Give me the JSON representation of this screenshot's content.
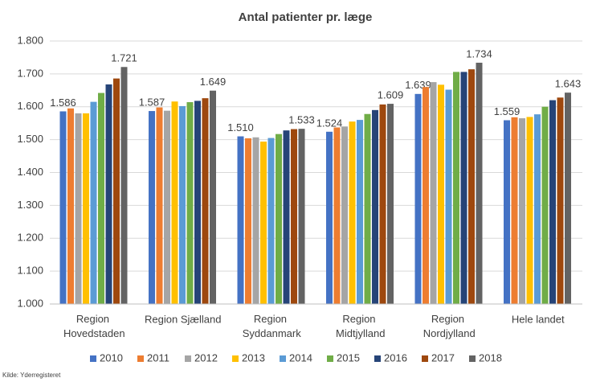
{
  "chart_data": {
    "type": "bar",
    "title": "Antal patienter pr. læge",
    "source": "Kilde: Yderregisteret",
    "categories": [
      "Region Hovedstaden",
      "Region Sjælland",
      "Region Syddanmark",
      "Region Midtjylland",
      "Region Nordjylland",
      "Hele landet"
    ],
    "series": [
      {
        "name": "2010",
        "color": "#4472c4",
        "values": [
          1586,
          1587,
          1510,
          1524,
          1639,
          1559
        ],
        "value_labels": [
          "1.586",
          "1.587",
          "1.510",
          "1.524",
          "1.639",
          "1.559"
        ]
      },
      {
        "name": "2011",
        "color": "#ed7d31",
        "values": [
          1595,
          1598,
          1504,
          1537,
          1660,
          1568
        ]
      },
      {
        "name": "2012",
        "color": "#a5a5a5",
        "values": [
          1580,
          1588,
          1507,
          1540,
          1675,
          1565
        ]
      },
      {
        "name": "2013",
        "color": "#ffc000",
        "values": [
          1580,
          1616,
          1494,
          1555,
          1667,
          1569
        ]
      },
      {
        "name": "2014",
        "color": "#5b9bd5",
        "values": [
          1615,
          1602,
          1505,
          1560,
          1652,
          1577
        ]
      },
      {
        "name": "2015",
        "color": "#70ad47",
        "values": [
          1642,
          1614,
          1517,
          1578,
          1706,
          1600
        ]
      },
      {
        "name": "2016",
        "color": "#264478",
        "values": [
          1668,
          1618,
          1528,
          1590,
          1706,
          1620
        ]
      },
      {
        "name": "2017",
        "color": "#9e480e",
        "values": [
          1686,
          1626,
          1532,
          1607,
          1714,
          1628
        ]
      },
      {
        "name": "2018",
        "color": "#636363",
        "values": [
          1721,
          1649,
          1533,
          1609,
          1734,
          1643
        ],
        "value_labels": [
          "1.721",
          "1.649",
          "1.533",
          "1.609",
          "1.734",
          "1.643"
        ]
      }
    ],
    "ylim": [
      1000,
      1800
    ],
    "yticks": [
      {
        "value": 1000,
        "label": "1.000"
      },
      {
        "value": 1100,
        "label": "1.100"
      },
      {
        "value": 1200,
        "label": "1.200"
      },
      {
        "value": 1300,
        "label": "1.300"
      },
      {
        "value": 1400,
        "label": "1.400"
      },
      {
        "value": 1500,
        "label": "1.500"
      },
      {
        "value": 1600,
        "label": "1.600"
      },
      {
        "value": 1700,
        "label": "1.700"
      },
      {
        "value": 1800,
        "label": "1.800"
      }
    ],
    "grid": true,
    "legend": "bottom"
  }
}
